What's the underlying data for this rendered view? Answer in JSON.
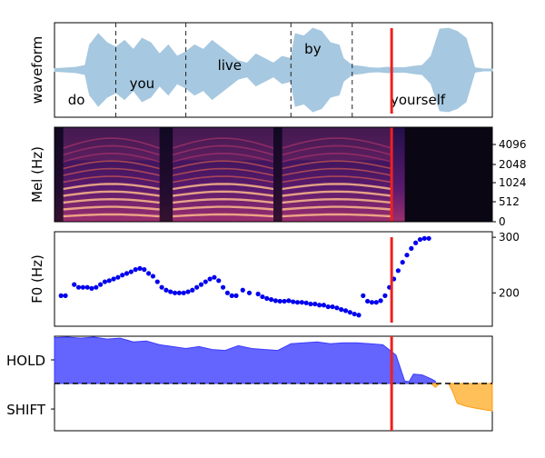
{
  "chart_data": [
    {
      "type": "area",
      "ylabel": "waveform",
      "words": [
        {
          "text": "do",
          "t": 0.05
        },
        {
          "text": "you",
          "t": 0.2
        },
        {
          "text": "live",
          "t": 0.4
        },
        {
          "text": "by",
          "t": 0.59
        },
        {
          "text": "yourself",
          "t": 0.83
        }
      ],
      "word_boundaries": [
        0.14,
        0.3,
        0.54,
        0.68
      ],
      "envelope": {
        "t": [
          0.0,
          0.02,
          0.05,
          0.07,
          0.08,
          0.1,
          0.12,
          0.14,
          0.16,
          0.18,
          0.2,
          0.22,
          0.24,
          0.26,
          0.28,
          0.3,
          0.32,
          0.34,
          0.36,
          0.38,
          0.4,
          0.42,
          0.44,
          0.46,
          0.48,
          0.5,
          0.52,
          0.54,
          0.55,
          0.57,
          0.59,
          0.61,
          0.63,
          0.65,
          0.66,
          0.68,
          0.7,
          0.72,
          0.74,
          0.76,
          0.78,
          0.8,
          0.82,
          0.84,
          0.86,
          0.88,
          0.9,
          0.92,
          0.94,
          0.96,
          0.98,
          1.0
        ],
        "amp": [
          0.03,
          0.04,
          0.06,
          0.1,
          0.55,
          0.8,
          0.6,
          0.5,
          0.65,
          0.45,
          0.7,
          0.6,
          0.35,
          0.55,
          0.3,
          0.4,
          0.55,
          0.45,
          0.65,
          0.5,
          0.35,
          0.2,
          0.15,
          0.35,
          0.25,
          0.15,
          0.3,
          0.25,
          0.8,
          0.75,
          0.92,
          0.85,
          0.6,
          0.55,
          0.25,
          0.1,
          0.08,
          0.05,
          0.04,
          0.06,
          0.05,
          0.05,
          0.08,
          0.1,
          0.3,
          0.9,
          0.92,
          0.85,
          0.7,
          0.05,
          0.02,
          0.02
        ]
      },
      "cursor_t": 0.77
    },
    {
      "type": "heatmap",
      "ylabel": "Mel (Hz)",
      "yticks": [
        "0",
        "512",
        "1024",
        "2048",
        "4096"
      ],
      "silence_t": [
        0.0,
        0.02,
        0.24,
        0.27,
        0.5,
        0.52,
        0.8,
        1.0
      ],
      "cursor_t": 0.77
    },
    {
      "type": "scatter",
      "ylabel": "F0 (Hz)",
      "ylim": [
        140,
        310
      ],
      "yticks": [
        200,
        300
      ],
      "x": [
        0.015,
        0.025,
        0.045,
        0.055,
        0.065,
        0.075,
        0.085,
        0.095,
        0.105,
        0.115,
        0.125,
        0.135,
        0.145,
        0.155,
        0.165,
        0.175,
        0.185,
        0.195,
        0.205,
        0.215,
        0.225,
        0.235,
        0.245,
        0.255,
        0.265,
        0.275,
        0.285,
        0.295,
        0.305,
        0.315,
        0.325,
        0.335,
        0.345,
        0.355,
        0.365,
        0.375,
        0.385,
        0.395,
        0.405,
        0.415,
        0.43,
        0.445,
        0.465,
        0.475,
        0.485,
        0.495,
        0.505,
        0.515,
        0.525,
        0.535,
        0.545,
        0.555,
        0.565,
        0.575,
        0.585,
        0.595,
        0.605,
        0.615,
        0.625,
        0.635,
        0.645,
        0.655,
        0.665,
        0.675,
        0.685,
        0.695,
        0.705,
        0.715,
        0.725,
        0.735,
        0.745,
        0.755,
        0.765,
        0.775,
        0.785,
        0.795,
        0.805,
        0.815,
        0.825,
        0.835,
        0.845,
        0.855,
        0.865,
        0.875,
        0.885,
        0.895,
        0.905,
        0.915,
        0.925,
        0.935
      ],
      "y": [
        195,
        195,
        215,
        210,
        210,
        210,
        208,
        210,
        215,
        220,
        222,
        225,
        228,
        232,
        235,
        238,
        242,
        244,
        242,
        235,
        230,
        220,
        210,
        205,
        202,
        200,
        200,
        200,
        202,
        205,
        210,
        215,
        220,
        225,
        228,
        222,
        210,
        200,
        195,
        195,
        205,
        200,
        198,
        193,
        190,
        188,
        186,
        185,
        185,
        186,
        184,
        183,
        183,
        182,
        180,
        180,
        178,
        178,
        175,
        175,
        173,
        170,
        168,
        165,
        162,
        160,
        195,
        185,
        183,
        183,
        186,
        195,
        210,
        225,
        240,
        255,
        268,
        280,
        290,
        296,
        298,
        298,
        195,
        195,
        195,
        195,
        195,
        195,
        195,
        195
      ],
      "cursor_t": 0.77
    },
    {
      "type": "area",
      "ytick_labels": [
        "HOLD",
        "SHIFT"
      ],
      "hold": {
        "t": [
          0.0,
          0.03,
          0.06,
          0.09,
          0.12,
          0.15,
          0.18,
          0.21,
          0.24,
          0.27,
          0.3,
          0.33,
          0.36,
          0.39,
          0.42,
          0.45,
          0.48,
          0.51,
          0.54,
          0.57,
          0.6,
          0.63,
          0.66,
          0.69,
          0.72,
          0.75,
          0.78,
          0.8,
          0.81,
          0.82,
          0.84,
          0.86,
          0.87
        ],
        "v": [
          0.97,
          0.98,
          0.96,
          0.98,
          0.94,
          0.96,
          0.88,
          0.9,
          0.82,
          0.78,
          0.74,
          0.78,
          0.72,
          0.7,
          0.8,
          0.74,
          0.72,
          0.7,
          0.84,
          0.86,
          0.88,
          0.84,
          0.86,
          0.86,
          0.84,
          0.82,
          0.6,
          0.05,
          0.04,
          0.2,
          0.18,
          0.1,
          0.05
        ]
      },
      "shift": [
        {
          "t": [
            0.86,
            0.87,
            0.88
          ],
          "v": [
            0.0,
            -0.08,
            0.0
          ]
        },
        {
          "t": [
            0.9,
            0.91,
            0.92,
            0.94,
            0.96,
            0.98,
            1.0
          ],
          "v": [
            0.0,
            -0.18,
            -0.42,
            -0.48,
            -0.52,
            -0.55,
            -0.58
          ]
        }
      ],
      "cursor_t": 0.77
    }
  ],
  "colors": {
    "waveform": "#a6c8e0",
    "f0": "#0000ee",
    "hold": "#6464ff",
    "shift": "#ffc05a",
    "cursor": "#ee2020",
    "dash": "#222222"
  }
}
